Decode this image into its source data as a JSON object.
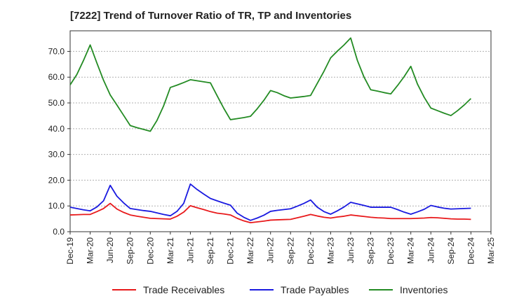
{
  "chart_data": {
    "type": "line",
    "title": "[7222]  Trend of Turnover Ratio of TR, TP and Inventories",
    "x_tick_labels": [
      "Dec-19",
      "Mar-20",
      "Jun-20",
      "Sep-20",
      "Dec-20",
      "Mar-21",
      "Jun-21",
      "Sep-21",
      "Dec-21",
      "Mar-22",
      "Jun-22",
      "Sep-22",
      "Dec-22",
      "Mar-23",
      "Jun-23",
      "Sep-23",
      "Dec-23",
      "Mar-24",
      "Jun-24",
      "Sep-24",
      "Dec-24",
      "Mar-25"
    ],
    "y_tick_labels": [
      "0.0",
      "10.0",
      "20.0",
      "30.0",
      "40.0",
      "50.0",
      "60.0",
      "70.0"
    ],
    "ylim": [
      0,
      78
    ],
    "grid": "horizontal dashed",
    "legend_position": "bottom",
    "x": [
      "Dec-19",
      "Jan-20",
      "Feb-20",
      "Mar-20",
      "Apr-20",
      "May-20",
      "Jun-20",
      "Jul-20",
      "Aug-20",
      "Sep-20",
      "Oct-20",
      "Nov-20",
      "Dec-20",
      "Jan-21",
      "Feb-21",
      "Mar-21",
      "Apr-21",
      "May-21",
      "Jun-21",
      "Jul-21",
      "Aug-21",
      "Sep-21",
      "Oct-21",
      "Nov-21",
      "Dec-21",
      "Jan-22",
      "Feb-22",
      "Mar-22",
      "Apr-22",
      "May-22",
      "Jun-22",
      "Jul-22",
      "Aug-22",
      "Sep-22",
      "Oct-22",
      "Nov-22",
      "Dec-22",
      "Jan-23",
      "Feb-23",
      "Mar-23",
      "Apr-23",
      "May-23",
      "Jun-23",
      "Jul-23",
      "Aug-23",
      "Sep-23",
      "Oct-23",
      "Nov-23",
      "Dec-23",
      "Jan-24",
      "Feb-24",
      "Mar-24",
      "Apr-24",
      "May-24",
      "Jun-24",
      "Jul-24",
      "Aug-24",
      "Sep-24",
      "Oct-24",
      "Nov-24",
      "Dec-24"
    ],
    "series": [
      {
        "name": "Trade Receivables",
        "color": "#e8191b",
        "values": [
          6.5,
          6.6,
          6.7,
          6.7,
          7.8,
          9.0,
          11.0,
          8.8,
          7.5,
          6.5,
          6.0,
          5.6,
          5.2,
          5.1,
          5.0,
          4.9,
          6.0,
          7.6,
          10.1,
          9.3,
          8.6,
          7.8,
          7.2,
          6.9,
          6.5,
          5.2,
          4.2,
          3.5,
          3.8,
          4.1,
          4.5,
          4.6,
          4.7,
          4.8,
          5.4,
          6.0,
          6.7,
          6.1,
          5.6,
          5.3,
          5.7,
          6.0,
          6.5,
          6.2,
          5.9,
          5.6,
          5.4,
          5.3,
          5.1,
          5.1,
          5.1,
          5.1,
          5.2,
          5.3,
          5.5,
          5.4,
          5.2,
          5.0,
          4.9,
          4.9,
          4.8
        ]
      },
      {
        "name": "Trade Payables",
        "color": "#1a1ae0",
        "values": [
          9.5,
          9.0,
          8.5,
          8.1,
          9.6,
          12.0,
          18.0,
          13.8,
          11.2,
          9.0,
          8.6,
          8.2,
          7.9,
          7.3,
          6.7,
          6.2,
          7.9,
          11.0,
          18.5,
          16.4,
          14.6,
          12.9,
          12.0,
          11.1,
          10.3,
          7.2,
          5.6,
          4.4,
          5.3,
          6.4,
          7.9,
          8.3,
          8.6,
          8.9,
          9.9,
          11.0,
          12.3,
          9.5,
          7.8,
          6.8,
          8.1,
          9.6,
          11.4,
          10.8,
          10.2,
          9.5,
          9.5,
          9.5,
          9.5,
          8.6,
          7.6,
          6.8,
          7.7,
          8.7,
          10.2,
          9.6,
          9.1,
          8.8,
          8.9,
          9.0,
          9.1
        ]
      },
      {
        "name": "Inventories",
        "color": "#238b23",
        "values": [
          57.0,
          61.0,
          66.5,
          72.5,
          65.5,
          58.8,
          53.1,
          49.2,
          45.2,
          41.2,
          40.4,
          39.7,
          39.0,
          43.2,
          48.9,
          56.0,
          56.9,
          57.9,
          59.0,
          58.6,
          58.2,
          57.8,
          52.8,
          47.9,
          43.5,
          43.9,
          44.3,
          44.8,
          47.7,
          51.0,
          54.8,
          54.0,
          52.8,
          51.9,
          52.2,
          52.5,
          52.9,
          57.6,
          62.3,
          67.5,
          70.1,
          72.5,
          75.2,
          66.5,
          60.0,
          55.1,
          54.6,
          54.0,
          53.5,
          56.7,
          60.2,
          64.2,
          57.3,
          52.2,
          48.0,
          47.0,
          46.0,
          45.1,
          47.0,
          49.2,
          51.7
        ]
      }
    ]
  }
}
